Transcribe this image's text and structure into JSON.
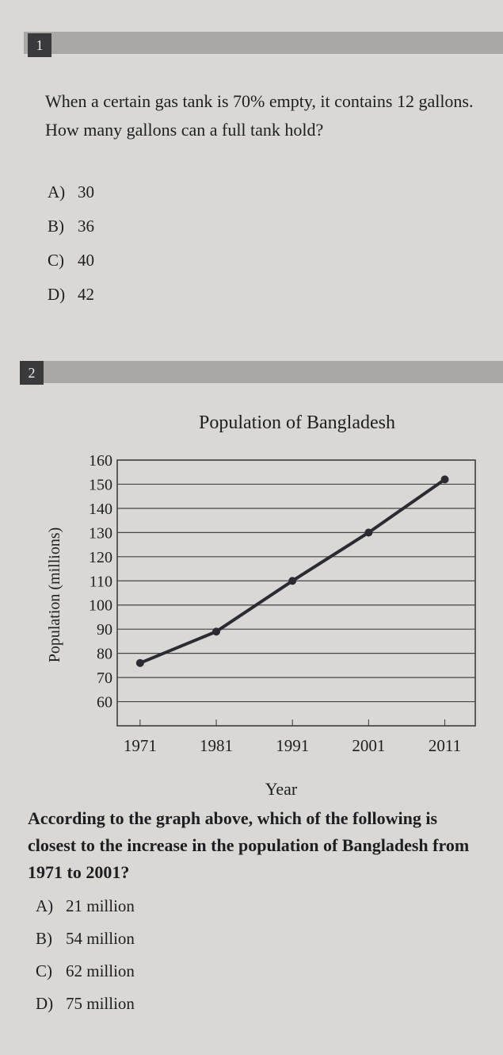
{
  "questions": [
    {
      "number": "1",
      "prompt": "When a certain gas tank is 70% empty, it contains 12 gallons. How many gallons can a full tank hold?",
      "choices": [
        {
          "letter": "A)",
          "text": "30"
        },
        {
          "letter": "B)",
          "text": "36"
        },
        {
          "letter": "C)",
          "text": "40"
        },
        {
          "letter": "D)",
          "text": "42"
        }
      ]
    },
    {
      "number": "2",
      "prompt": "According to the graph above, which of the following is closest to the increase in the population of Bangladesh from 1971 to 2001?",
      "choices": [
        {
          "letter": "A)",
          "text": "21 million"
        },
        {
          "letter": "B)",
          "text": "54 million"
        },
        {
          "letter": "C)",
          "text": "62 million"
        },
        {
          "letter": "D)",
          "text": "75 million"
        }
      ]
    }
  ],
  "chart_data": {
    "type": "line",
    "title": "Population of Bangladesh",
    "x_label": "Year",
    "y_label": "Population (millions)",
    "x": [
      1971,
      1981,
      1991,
      2001,
      2011
    ],
    "xticks": [
      1971,
      1981,
      1991,
      2001,
      2011
    ],
    "xlim": [
      1968,
      2015
    ],
    "values": [
      76,
      89,
      110,
      130,
      152
    ],
    "color": "#2b2b33",
    "ylim": [
      50,
      160
    ],
    "yticks": [
      60,
      70,
      80,
      90,
      100,
      110,
      120,
      130,
      140,
      150,
      160
    ],
    "grid": true
  }
}
